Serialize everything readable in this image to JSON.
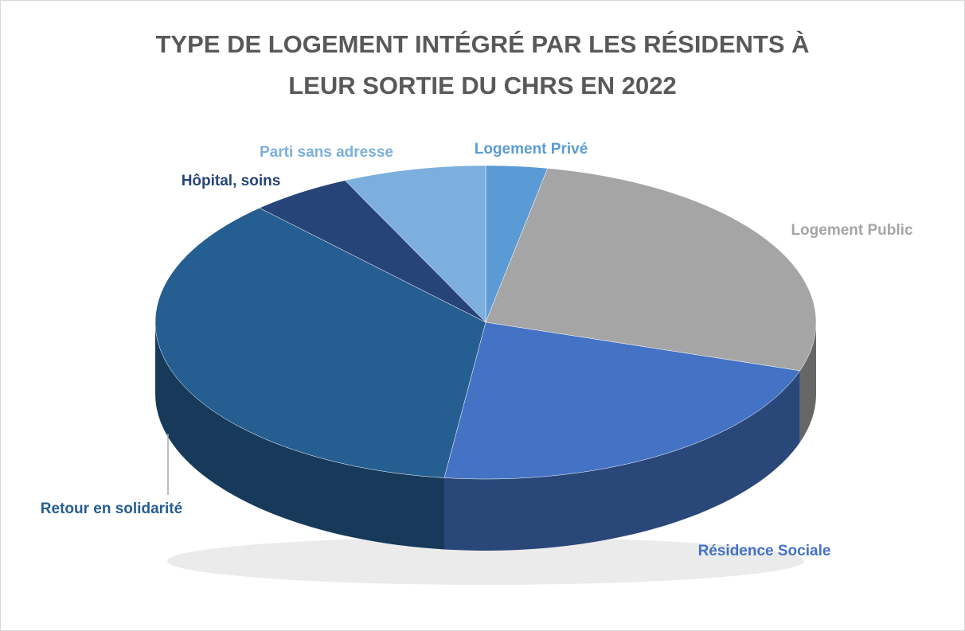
{
  "chart_data": {
    "type": "pie",
    "title": [
      "TYPE DE LOGEMENT INTÉGRÉ PAR LES RÉSIDENTS À",
      "LEUR SORTIE DU CHRS EN 2022"
    ],
    "categories": [
      "Logement Privé",
      "Logement Public",
      "Résidence Sociale",
      "Retour en solidarité",
      "Hôpital, soins",
      "Parti sans adresse"
    ],
    "values": [
      3,
      27,
      22,
      36,
      5,
      7
    ],
    "colors": [
      "#5b9bd5",
      "#a5a5a5",
      "#4472c4",
      "#255e91",
      "#264478",
      "#7cafdd"
    ]
  }
}
